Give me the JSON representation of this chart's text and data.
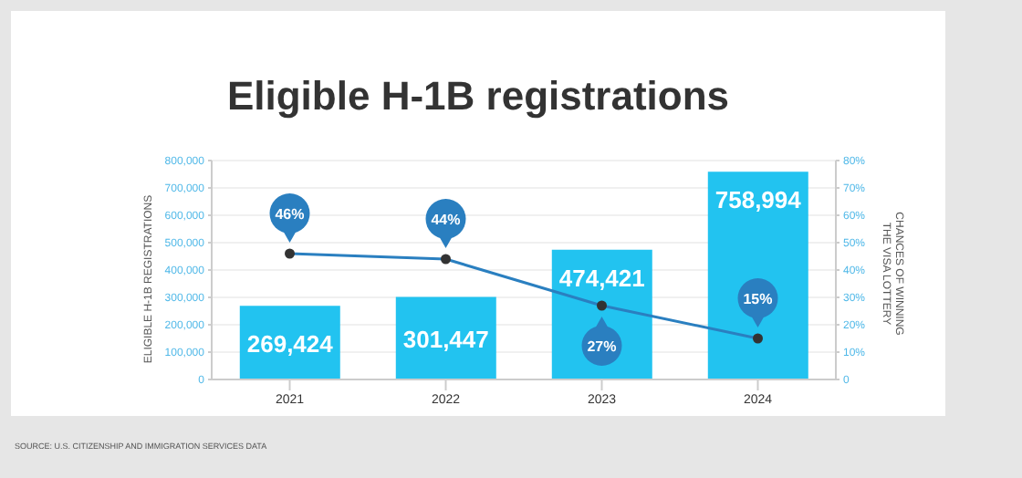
{
  "chart_data": {
    "type": "bar",
    "title": "Eligible H-1B registrations",
    "categories": [
      "2021",
      "2022",
      "2023",
      "2024"
    ],
    "series": [
      {
        "color": "#22c3f0",
        "values": [
          269424,
          301447,
          474421,
          758994
        ],
        "value_labels": [
          "269,424",
          "301,447",
          "474,421",
          "758,994"
        ]
      },
      {
        "type": "line",
        "axis": "y2",
        "color": "#2a7fc0",
        "values": [
          46,
          44,
          27,
          15
        ],
        "value_labels": [
          "46%",
          "44%",
          "27%",
          "15%"
        ],
        "marker": "circle"
      }
    ],
    "ylabel": "ELIGIBLE H-1B REGISTRATIONS",
    "y2label": "CHANCES OF WINNING THE VISA LOTTERY",
    "ylim": [
      0,
      800000
    ],
    "yticks": [
      0,
      {
        "value": 100000,
        "label": "100,000"
      },
      {
        "value": 200000,
        "label": "200,000"
      },
      {
        "value": 300000,
        "label": "300,000"
      },
      {
        "value": 400000,
        "label": "400,000"
      },
      {
        "value": 500000,
        "label": "500,000"
      },
      {
        "value": 600000,
        "label": "600,000"
      },
      {
        "value": 700000,
        "label": "700,000"
      },
      {
        "value": 800000,
        "label": "800,000"
      }
    ],
    "y2lim": [
      0,
      80
    ],
    "y2ticks": [
      0,
      {
        "value": 10,
        "label": "10%"
      },
      {
        "value": 20,
        "label": "20%"
      },
      {
        "value": 30,
        "label": "30%"
      },
      {
        "value": 40,
        "label": "40%"
      },
      {
        "value": 50,
        "label": "50%"
      },
      {
        "value": 60,
        "label": "60%"
      },
      {
        "value": 70,
        "label": "70%"
      },
      {
        "value": 80,
        "label": "80%"
      }
    ],
    "grid": "y",
    "annotations": [
      "SOURCE: U.S. CITIZENSHIP AND IMMIGRATION SERVICES DATA"
    ]
  }
}
